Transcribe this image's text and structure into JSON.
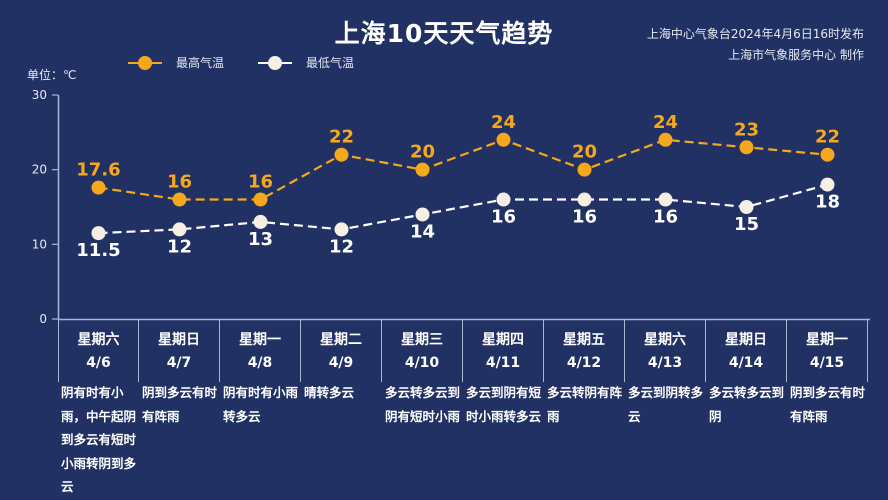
{
  "header": {
    "title": "上海10天天气趋势",
    "source_line1": "上海中心气象台2024年4月6日16时发布",
    "source_line2": "上海市气象服务中心 制作"
  },
  "legend": {
    "high_label": "最高气温",
    "low_label": "最低气温"
  },
  "axis": {
    "unit_label": "单位：℃",
    "ticks": [
      "30",
      "20",
      "10",
      "0"
    ]
  },
  "colors": {
    "background": "#213163",
    "high": "#f5a81c",
    "low": "#ffffff",
    "axis": "#aab6d6"
  },
  "days": [
    {
      "weekday": "星期六",
      "date": "4/6",
      "desc": "阴有时有小雨，中午起阴到多云有短时小雨转阴到多云",
      "high": "17.6",
      "low": "11.5"
    },
    {
      "weekday": "星期日",
      "date": "4/7",
      "desc": "阴到多云有时有阵雨",
      "high": "16",
      "low": "12"
    },
    {
      "weekday": "星期一",
      "date": "4/8",
      "desc": "阴有时有小雨转多云",
      "high": "16",
      "low": "13"
    },
    {
      "weekday": "星期二",
      "date": "4/9",
      "desc": "晴转多云",
      "high": "22",
      "low": "12"
    },
    {
      "weekday": "星期三",
      "date": "4/10",
      "desc": "多云转多云到阴有短时小雨",
      "high": "20",
      "low": "14"
    },
    {
      "weekday": "星期四",
      "date": "4/11",
      "desc": "多云到阴有短时小雨转多云",
      "high": "24",
      "low": "16"
    },
    {
      "weekday": "星期五",
      "date": "4/12",
      "desc": "多云转阴有阵雨",
      "high": "20",
      "low": "16"
    },
    {
      "weekday": "星期六",
      "date": "4/13",
      "desc": "多云到阴转多云",
      "high": "24",
      "low": "16"
    },
    {
      "weekday": "星期日",
      "date": "4/14",
      "desc": "多云转多云到阴",
      "high": "23",
      "low": "15"
    },
    {
      "weekday": "星期一",
      "date": "4/15",
      "desc": "阴到多云有时有阵雨",
      "high": "22",
      "low": "18"
    }
  ],
  "chart_data": {
    "type": "line",
    "title": "上海10天天气趋势",
    "subtitle": "上海中心气象台2024年4月6日16时发布 / 上海市气象服务中心 制作",
    "xlabel": "",
    "ylabel": "单位：℃",
    "ylim": [
      0,
      30
    ],
    "yticks": [
      0,
      10,
      20,
      30
    ],
    "grid": false,
    "legend_position": "top-left",
    "categories": [
      "4/6",
      "4/7",
      "4/8",
      "4/9",
      "4/10",
      "4/11",
      "4/12",
      "4/13",
      "4/14",
      "4/15"
    ],
    "weekdays": [
      "星期六",
      "星期日",
      "星期一",
      "星期二",
      "星期三",
      "星期四",
      "星期五",
      "星期六",
      "星期日",
      "星期一"
    ],
    "series": [
      {
        "name": "最高气温",
        "color": "#f5a81c",
        "style": "dashed",
        "values": [
          17.6,
          16,
          16,
          22,
          20,
          24,
          20,
          24,
          23,
          22
        ]
      },
      {
        "name": "最低气温",
        "color": "#ffffff",
        "style": "dashed",
        "values": [
          11.5,
          12,
          13,
          12,
          14,
          16,
          16,
          16,
          15,
          18
        ]
      }
    ]
  }
}
